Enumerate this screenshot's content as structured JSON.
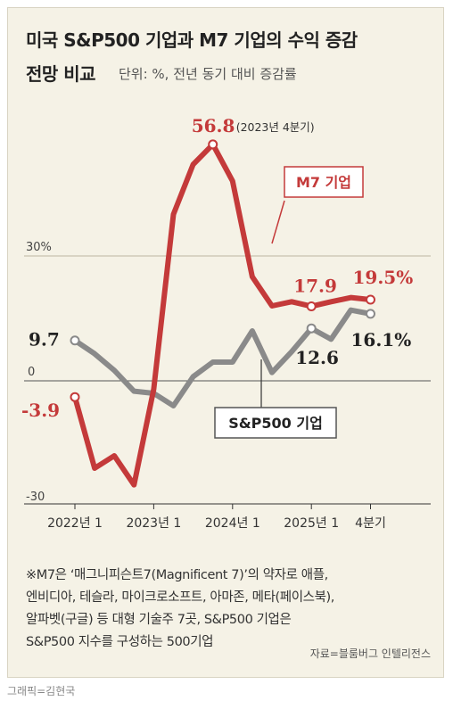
{
  "header": {
    "title_line1": "미국 S&P500 기업과 M7 기업의 수익 증감",
    "title_line2": "전망 비교",
    "unit": "단위: %, 전년 동기 대비 증감률"
  },
  "chart_data": {
    "type": "line",
    "y_tick_labels": [
      "30%",
      "0",
      "-30"
    ],
    "ylim": [
      -30,
      65
    ],
    "x_tick_labels": [
      "2022년 1",
      "2023년 1",
      "2024년 1",
      "2025년 1",
      "4분기"
    ],
    "x": [
      "2022 Q1",
      "2022 Q2",
      "2022 Q3",
      "2022 Q4",
      "2023 Q1",
      "2023 Q2",
      "2023 Q3",
      "2023 Q4",
      "2024 Q1",
      "2024 Q2",
      "2024 Q3",
      "2024 Q4",
      "2025 Q1",
      "2025 Q2",
      "2025 Q3",
      "2025 Q4"
    ],
    "grid": "horizontal gridlines at 30 and 0",
    "series": [
      {
        "name": "M7 기업",
        "color": "#c43a3a",
        "values": [
          -3.9,
          -21,
          -18,
          -25,
          -2,
          40,
          52,
          56.8,
          48,
          25,
          18,
          19,
          17.9,
          19,
          20,
          19.5
        ]
      },
      {
        "name": "S&P500 기업",
        "color": "#8a8a8a",
        "values": [
          9.7,
          6.5,
          2.5,
          -2.5,
          -3,
          -6,
          1,
          4.5,
          4.5,
          12,
          2,
          7,
          12.6,
          10,
          17,
          16.1
        ]
      }
    ],
    "data_labels": {
      "m7_start": "-3.9",
      "m7_peak": "56.8",
      "m7_peak_note": "(2023년 4분기)",
      "m7_2025q1": "17.9",
      "m7_end": "19.5%",
      "sp_start": "9.7",
      "sp_2025q1": "12.6",
      "sp_end": "16.1%"
    }
  },
  "note": {
    "line1": "※M7은 ‘매그니피슨트7(Magnificent 7)’의 약자로 애플,",
    "line2": "엔비디아, 테슬라, 마이크로소프트, 아마존, 메타(페이스북),",
    "line3": "알파벳(구글) 등 대형 기술주 7곳, S&P500 기업은",
    "line4": "S&P500 지수를 구성하는 500기업"
  },
  "source": "자료=블룸버그 인텔리전스",
  "credit": "그래픽=김현국"
}
